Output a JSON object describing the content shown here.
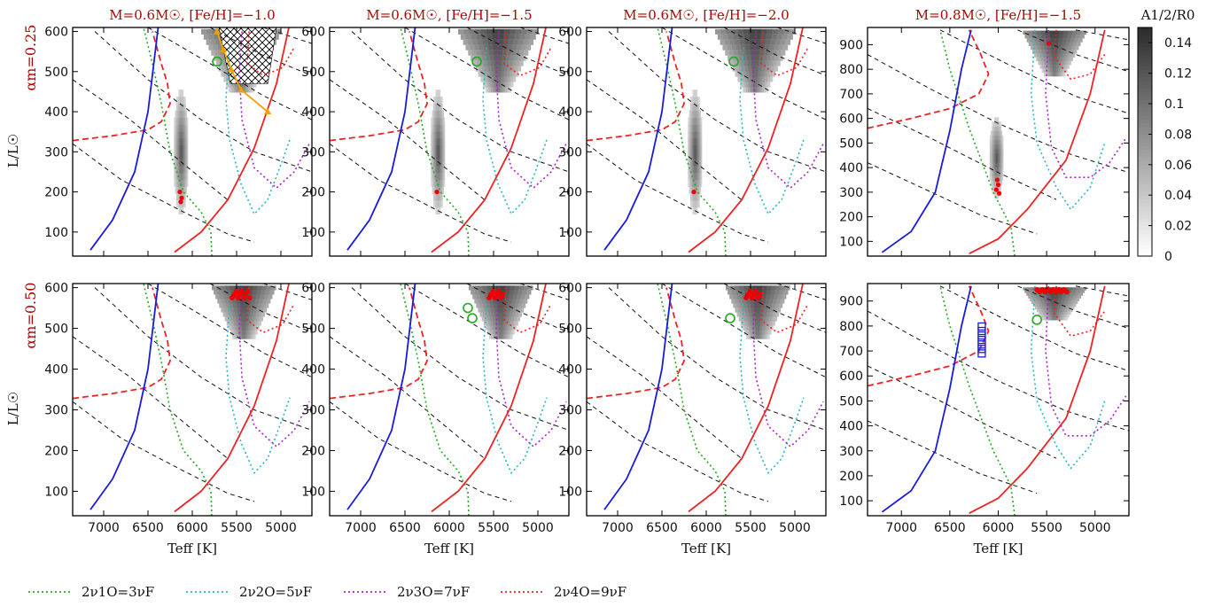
{
  "chart_data": {
    "type": "line",
    "panels": [
      {
        "title": "M=0.6M☉, [Fe/H]=−1.0",
        "row": 0,
        "col": 0
      },
      {
        "title": "M=0.6M☉, [Fe/H]=−1.5",
        "row": 0,
        "col": 1
      },
      {
        "title": "M=0.6M☉, [Fe/H]=−2.0",
        "row": 0,
        "col": 2
      },
      {
        "title": "M=0.8M☉, [Fe/H]=−1.5",
        "row": 0,
        "col": 3
      },
      {
        "title": "",
        "row": 1,
        "col": 0
      },
      {
        "title": "",
        "row": 1,
        "col": 1
      },
      {
        "title": "",
        "row": 1,
        "col": 2
      },
      {
        "title": "",
        "row": 1,
        "col": 3
      }
    ],
    "row_labels": [
      "αm=0.25",
      "αm=0.50"
    ],
    "xlabel": "Teff [K]",
    "ylabel": "L/L☉",
    "xlim": [
      7350,
      4650
    ],
    "ylim_low_mass": [
      40,
      610
    ],
    "ylim_high_mass": [
      40,
      970
    ],
    "x_ticks": [
      "7000",
      "6500",
      "6000",
      "5500",
      "5000"
    ],
    "y_ticks_low_mass": [
      "100",
      "200",
      "300",
      "400",
      "500",
      "600"
    ],
    "y_ticks_high_mass": [
      "100",
      "200",
      "300",
      "400",
      "500",
      "600",
      "700",
      "800",
      "900"
    ],
    "colorbar": {
      "label": "A1/2/R0",
      "range": [
        0,
        0.15
      ],
      "ticks": [
        "0",
        "0.02",
        "0.04",
        "0.06",
        "0.08",
        "0.1",
        "0.12",
        "0.14"
      ]
    },
    "series": [
      {
        "name": "2ν1O=3νF",
        "color": "#22aa22",
        "style": "dotted"
      },
      {
        "name": "2ν2O=5νF",
        "color": "#22b8c8",
        "style": "dotted"
      },
      {
        "name": "2ν3O=7νF",
        "color": "#aa22cc",
        "style": "dotted"
      },
      {
        "name": "2ν4O=9νF",
        "color": "#ee2222",
        "style": "dotted"
      }
    ],
    "instability_strip": {
      "blue_edge": "#1a1adc",
      "red_edge": "#ee2222",
      "transition": "dashed red"
    },
    "orange_track_Teff": [
      5720,
      5650,
      5560,
      5450,
      5150
    ],
    "orange_track_L": [
      600,
      555,
      505,
      455,
      400
    ]
  },
  "text": {
    "legend": [
      "2ν1O=3νF",
      "2ν2O=5νF",
      "2ν3O=7νF",
      "2ν4O=9νF"
    ]
  }
}
